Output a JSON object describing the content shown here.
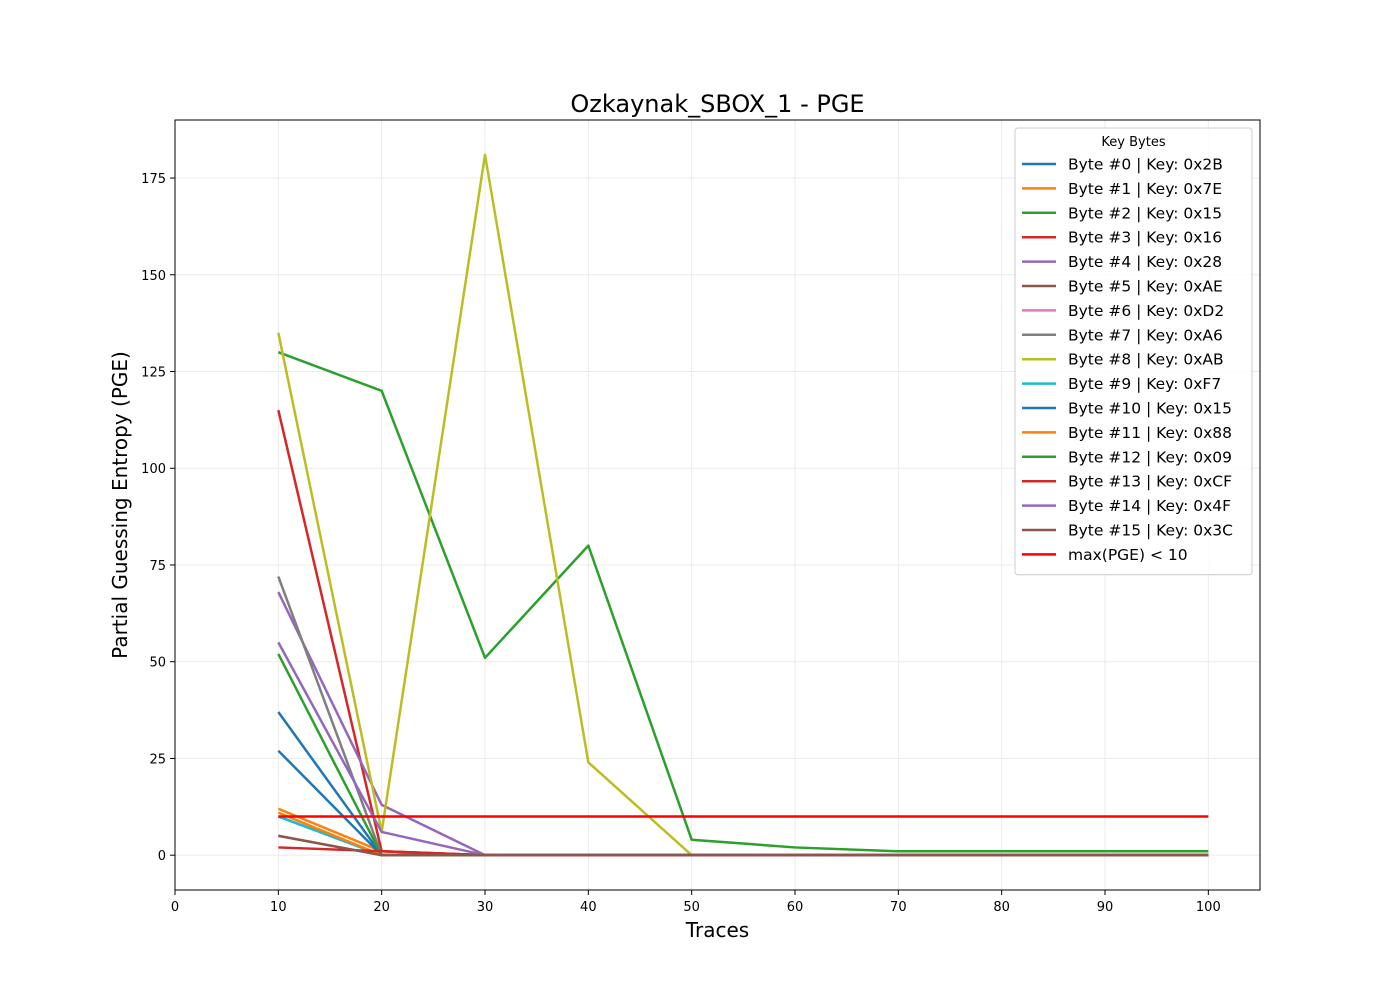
{
  "chart_data": {
    "type": "line",
    "title": "Ozkaynak_SBOX_1 - PGE",
    "xlabel": "Traces",
    "ylabel": "Partial Guessing Entropy (PGE)",
    "xlim": [
      0,
      105
    ],
    "ylim": [
      -9,
      190
    ],
    "xticks": [
      0,
      10,
      20,
      30,
      40,
      50,
      60,
      70,
      80,
      90,
      100
    ],
    "yticks": [
      0,
      25,
      50,
      75,
      100,
      125,
      150,
      175
    ],
    "grid": true,
    "legend": {
      "title": "Key Bytes",
      "placement": "top-right"
    },
    "x": [
      10,
      20,
      30,
      40,
      50,
      60,
      70,
      80,
      90,
      100
    ],
    "series": [
      {
        "name": "Byte #0 | Key: 0x2B",
        "color": "#1f77b4",
        "values": [
          37,
          0,
          0,
          0,
          0,
          0,
          0,
          0,
          0,
          0
        ]
      },
      {
        "name": "Byte #1 | Key: 0x7E",
        "color": "#ff7f0e",
        "values": [
          12,
          1,
          0,
          0,
          0,
          0,
          0,
          0,
          0,
          0
        ]
      },
      {
        "name": "Byte #2 | Key: 0x15",
        "color": "#2ca02c",
        "values": [
          130,
          120,
          51,
          80,
          4,
          2,
          1,
          1,
          1,
          1
        ]
      },
      {
        "name": "Byte #3 | Key: 0x16",
        "color": "#d62728",
        "values": [
          115,
          1,
          0,
          0,
          0,
          0,
          0,
          0,
          0,
          0
        ]
      },
      {
        "name": "Byte #4 | Key: 0x28",
        "color": "#9467bd",
        "values": [
          68,
          13,
          0,
          0,
          0,
          0,
          0,
          0,
          0,
          0
        ]
      },
      {
        "name": "Byte #5 | Key: 0xAE",
        "color": "#8c564b",
        "values": [
          5,
          0,
          0,
          0,
          0,
          0,
          0,
          0,
          0,
          0
        ]
      },
      {
        "name": "Byte #6 | Key: 0xD2",
        "color": "#e377c2",
        "values": [
          10,
          0,
          0,
          0,
          0,
          0,
          0,
          0,
          0,
          0
        ]
      },
      {
        "name": "Byte #7 | Key: 0xA6",
        "color": "#7f7f7f",
        "values": [
          72,
          0,
          0,
          0,
          0,
          0,
          0,
          0,
          0,
          0
        ]
      },
      {
        "name": "Byte #8 | Key: 0xAB",
        "color": "#bcbd22",
        "values": [
          135,
          6,
          181,
          24,
          0,
          0,
          0,
          0,
          0,
          0
        ]
      },
      {
        "name": "Byte #9 | Key: 0xF7",
        "color": "#17becf",
        "values": [
          10,
          0,
          0,
          0,
          0,
          0,
          0,
          0,
          0,
          0
        ]
      },
      {
        "name": "Byte #10 | Key: 0x15",
        "color": "#1f77b4",
        "values": [
          27,
          0,
          0,
          0,
          0,
          0,
          0,
          0,
          0,
          0
        ]
      },
      {
        "name": "Byte #11 | Key: 0x88",
        "color": "#ff7f0e",
        "values": [
          11,
          0,
          0,
          0,
          0,
          0,
          0,
          0,
          0,
          0
        ]
      },
      {
        "name": "Byte #12 | Key: 0x09",
        "color": "#2ca02c",
        "values": [
          52,
          0,
          0,
          0,
          0,
          0,
          0,
          0,
          0,
          0
        ]
      },
      {
        "name": "Byte #13 | Key: 0xCF",
        "color": "#d62728",
        "values": [
          2,
          1,
          0,
          0,
          0,
          0,
          0,
          0,
          0,
          0
        ]
      },
      {
        "name": "Byte #14 | Key: 0x4F",
        "color": "#9467bd",
        "values": [
          55,
          6,
          0,
          0,
          0,
          0,
          0,
          0,
          0,
          0
        ]
      },
      {
        "name": "Byte #15 | Key: 0x3C",
        "color": "#8c564b",
        "values": [
          5,
          0,
          0,
          0,
          0,
          0,
          0,
          0,
          0,
          0
        ]
      },
      {
        "name": "max(PGE) < 10",
        "color": "#ff0000",
        "values": [
          10,
          10,
          10,
          10,
          10,
          10,
          10,
          10,
          10,
          10
        ]
      }
    ]
  }
}
